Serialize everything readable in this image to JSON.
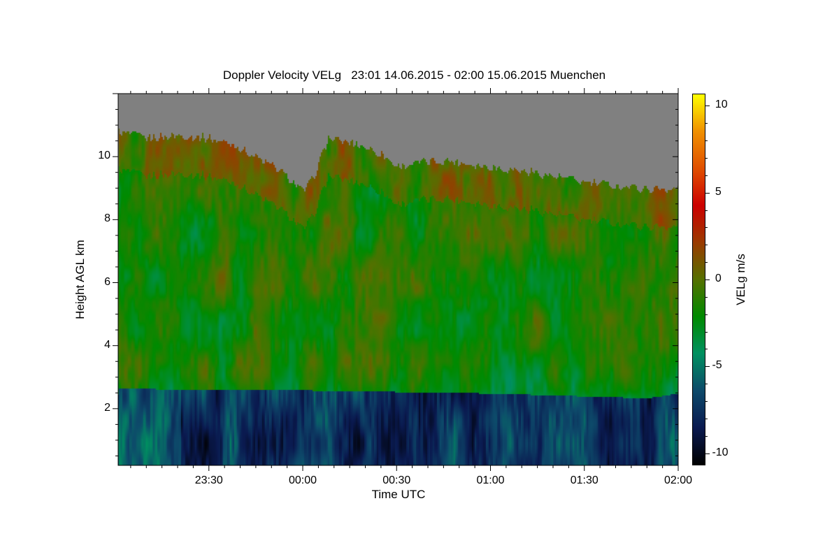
{
  "chart_data": {
    "type": "heatmap",
    "title": "Doppler Velocity VELg   23:01 14.06.2015 - 02:00 15.06.2015 Muenchen",
    "xlabel": "Time UTC",
    "ylabel": "Height AGL km",
    "colorbar_label": "VELg m/s",
    "x_range_minutes_after_2300": [
      1,
      180
    ],
    "x_ticks": [
      {
        "label": "23:30",
        "min": 30
      },
      {
        "label": "00:00",
        "min": 60
      },
      {
        "label": "00:30",
        "min": 90
      },
      {
        "label": "01:00",
        "min": 120
      },
      {
        "label": "01:30",
        "min": 150
      },
      {
        "label": "02:00",
        "min": 180
      }
    ],
    "ylim": [
      0.2,
      12.0
    ],
    "y_ticks": [
      {
        "label": "2",
        "v": 2
      },
      {
        "label": "4",
        "v": 4
      },
      {
        "label": "6",
        "v": 6
      },
      {
        "label": "8",
        "v": 8
      },
      {
        "label": "10",
        "v": 10
      }
    ],
    "colorbar_range": [
      -10.7,
      10.7
    ],
    "colorbar_ticks": [
      {
        "label": "10",
        "v": 10
      },
      {
        "label": "5",
        "v": 5
      },
      {
        "label": "0",
        "v": 0
      },
      {
        "label": "-5",
        "v": -5
      },
      {
        "label": "-10",
        "v": -10
      }
    ],
    "no_data_color": "#808080",
    "colormap": [
      "#000000",
      "#0a1a50",
      "#0d4a6a",
      "#009060",
      "#008a00",
      "#557000",
      "#9a3a00",
      "#cc0000",
      "#e05000",
      "#f09000",
      "#ffff00"
    ],
    "cloud_top_km": {
      "minutes": [
        1,
        10,
        20,
        30,
        38,
        45,
        52,
        57,
        60,
        63,
        68,
        78,
        85,
        90,
        95,
        105,
        120,
        135,
        150,
        160,
        170,
        180
      ],
      "height": [
        10.8,
        10.6,
        10.7,
        10.6,
        10.4,
        10.0,
        9.6,
        9.2,
        8.9,
        9.3,
        10.6,
        10.4,
        10.1,
        9.7,
        9.8,
        9.9,
        9.7,
        9.5,
        9.2,
        9.1,
        9.0,
        9.0
      ]
    },
    "precip_layer_top_km": {
      "minutes": [
        1,
        60,
        120,
        170,
        180
      ],
      "height": [
        2.65,
        2.6,
        2.5,
        2.35,
        2.5
      ]
    },
    "typical_velocity_m_s": {
      "above_layer": -1.5,
      "below_layer": -7.5,
      "updraft_patches": 2.5
    }
  }
}
